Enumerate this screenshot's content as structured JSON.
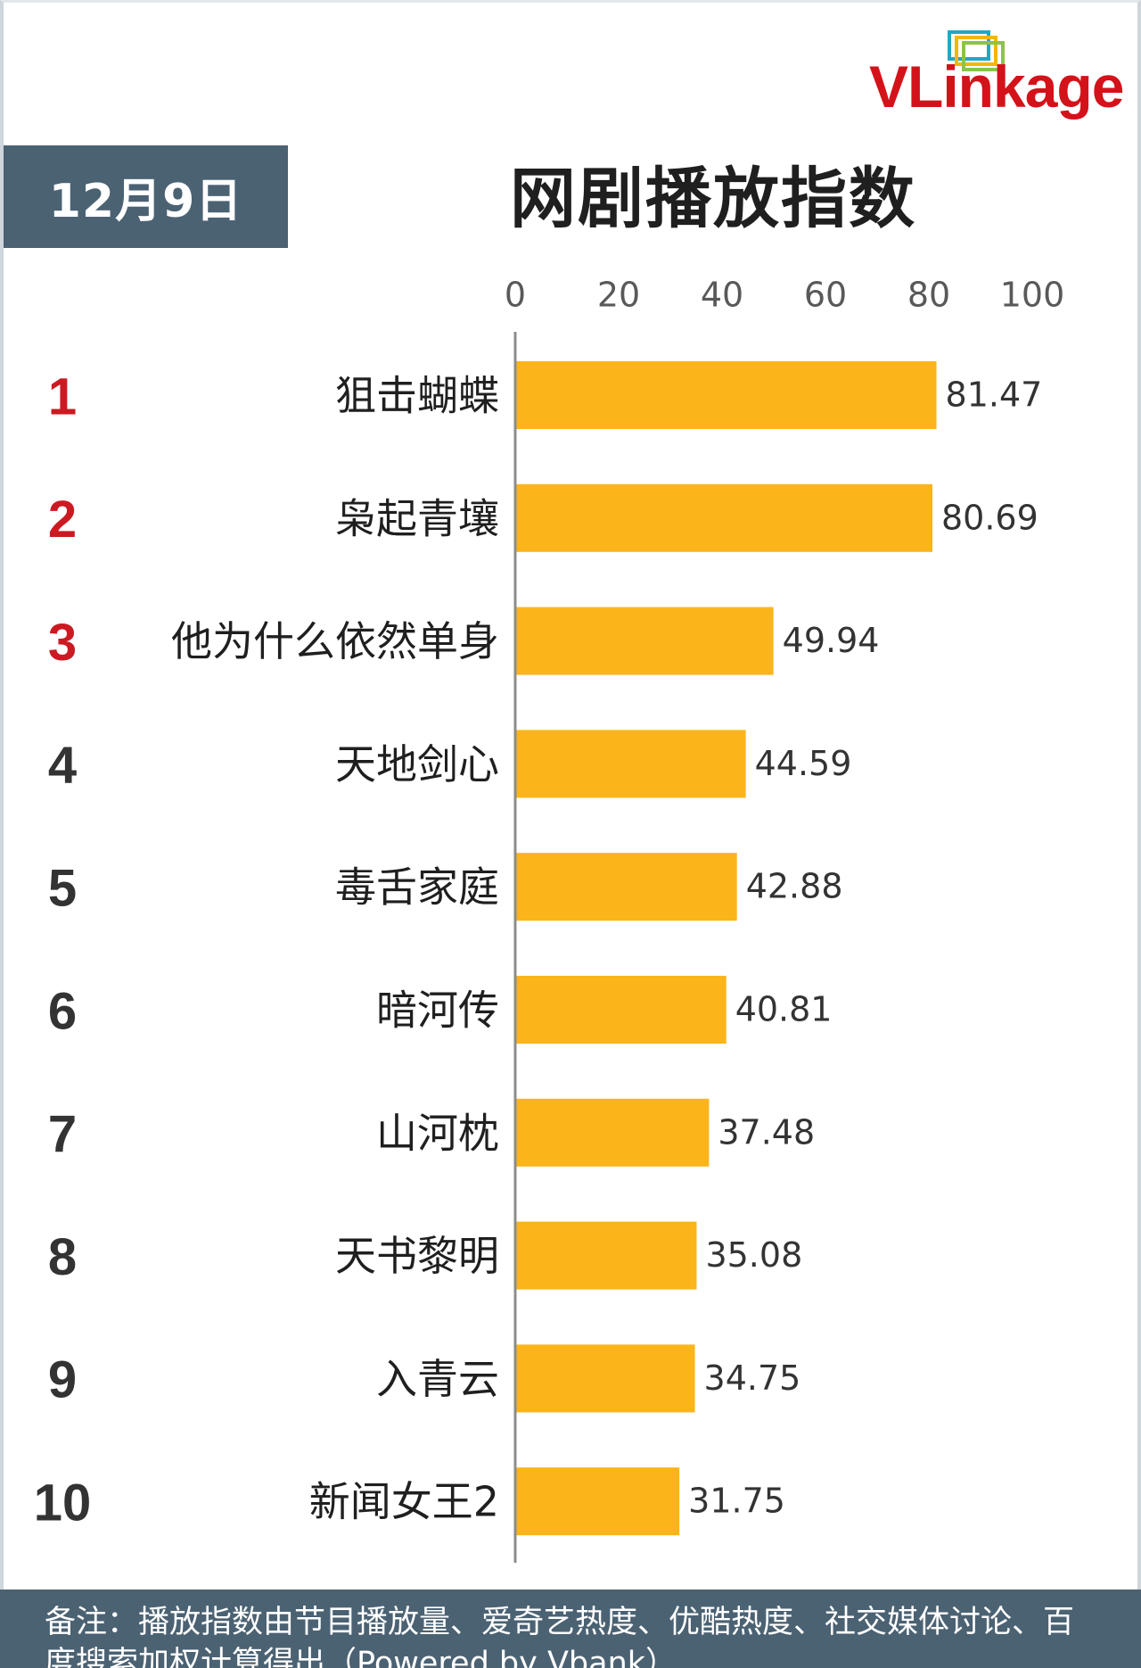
{
  "logo": {
    "text_vl": "VL",
    "text_rest": "inkage",
    "brand_color": "#d4121a",
    "mark_colors": [
      "#27a6c4",
      "#f2b705",
      "#8bc34a",
      "#e53935"
    ]
  },
  "header": {
    "date": "12月9日"
  },
  "footer": {
    "note": "备注：播放指数由节目播放量、爱奇艺热度、优酷热度、社交媒体讨论、百度搜索加权计算得出（Powered by Vbank）"
  },
  "colors": {
    "bar": "#fbb41a",
    "rank_top": "#cc1a22",
    "rank_other": "#333333",
    "band": "#4b6273"
  },
  "chart_data": {
    "type": "bar",
    "orientation": "horizontal",
    "title": "网剧播放指数",
    "xlim": [
      0,
      100
    ],
    "x_ticks": [
      0,
      20,
      40,
      60,
      80,
      100
    ],
    "x_axis_position": "top",
    "grid": false,
    "ranks": [
      "1",
      "2",
      "3",
      "4",
      "5",
      "6",
      "7",
      "8",
      "9",
      "10"
    ],
    "categories": [
      "狙击蝴蝶",
      "枭起青壤",
      "他为什么依然单身",
      "天地剑心",
      "毒舌家庭",
      "暗河传",
      "山河枕",
      "天书黎明",
      "入青云",
      "新闻女王2"
    ],
    "values": [
      81.47,
      80.69,
      49.94,
      44.59,
      42.88,
      40.81,
      37.48,
      35.08,
      34.75,
      31.75
    ],
    "value_labels": [
      "81.47",
      "80.69",
      "49.94",
      "44.59",
      "42.88",
      "40.81",
      "37.48",
      "35.08",
      "34.75",
      "31.75"
    ]
  }
}
